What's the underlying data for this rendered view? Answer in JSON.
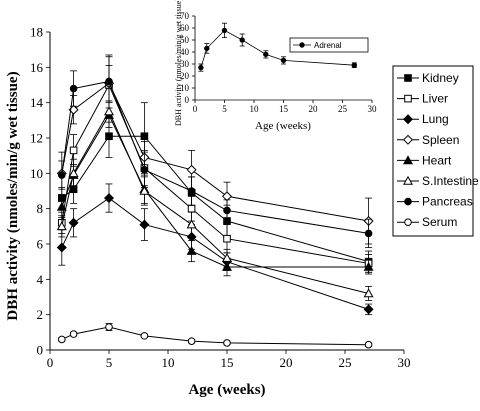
{
  "chart_data": [
    {
      "type": "line",
      "xlabel": "Age (weeks)",
      "ylabel": "DBH activity (nmoles/min/g wet tissue)",
      "xlim": [
        0,
        30
      ],
      "ylim": [
        0,
        18
      ],
      "xticks": [
        0,
        5,
        10,
        15,
        20,
        25,
        30
      ],
      "yticks": [
        0,
        2,
        4,
        6,
        8,
        10,
        12,
        14,
        16,
        18
      ],
      "x": [
        1,
        2,
        5,
        8,
        12,
        15,
        27
      ],
      "grid": false,
      "legend": "right",
      "series": [
        {
          "name": "Kidney",
          "marker": "square-filled",
          "values": [
            8.6,
            9.1,
            12.1,
            12.1,
            8.9,
            7.3,
            5.0
          ],
          "errors": [
            0.6,
            0.8,
            1.2,
            1.9,
            0.9,
            0.9,
            0.6
          ]
        },
        {
          "name": "Liver",
          "marker": "square-open",
          "values": [
            7.2,
            11.3,
            15.0,
            10.3,
            8.0,
            6.3,
            4.9
          ],
          "errors": [
            0.6,
            0.9,
            1.6,
            1.0,
            0.7,
            0.8,
            0.5
          ]
        },
        {
          "name": "Lung",
          "marker": "diamond-filled",
          "values": [
            5.8,
            7.2,
            8.6,
            7.1,
            6.4,
            5.0,
            2.3
          ],
          "errors": [
            1.0,
            0.8,
            0.8,
            0.9,
            0.7,
            0.5,
            0.3
          ]
        },
        {
          "name": "Spleen",
          "marker": "diamond-open",
          "values": [
            10.0,
            13.6,
            15.1,
            10.9,
            10.2,
            8.7,
            7.3
          ],
          "errors": [
            1.2,
            0.8,
            1.0,
            0.9,
            1.1,
            0.8,
            1.3
          ]
        },
        {
          "name": "Heart",
          "marker": "triangle-filled",
          "values": [
            8.1,
            9.9,
            13.3,
            9.1,
            5.6,
            4.7,
            4.7
          ],
          "errors": [
            0.6,
            0.6,
            0.7,
            0.8,
            0.6,
            0.5,
            0.4
          ]
        },
        {
          "name": "S.Intestine",
          "marker": "triangle-open",
          "values": [
            7.0,
            10.0,
            13.5,
            9.0,
            7.1,
            5.2,
            3.2
          ],
          "errors": [
            0.6,
            0.8,
            0.6,
            0.8,
            0.7,
            0.5,
            0.4
          ]
        },
        {
          "name": "Pancreas",
          "marker": "circle-filled",
          "values": [
            9.9,
            14.8,
            15.2,
            10.2,
            9.0,
            7.9,
            6.6
          ],
          "errors": [
            0.8,
            1.0,
            1.5,
            1.0,
            0.8,
            0.6,
            0.8
          ]
        },
        {
          "name": "Serum",
          "marker": "circle-open",
          "values": [
            0.6,
            0.9,
            1.3,
            0.8,
            0.5,
            0.4,
            0.3
          ],
          "errors": [
            0.1,
            0.1,
            0.2,
            0.1,
            0.1,
            0.1,
            0.1
          ]
        }
      ]
    },
    {
      "type": "line",
      "xlabel": "Age (weeks)",
      "ylabel": "DBH activity (nmoles/min/g wet tissue)",
      "xlim": [
        0,
        30
      ],
      "ylim": [
        0,
        70
      ],
      "xticks": [
        0,
        5,
        10,
        15,
        20,
        25,
        30
      ],
      "yticks": [
        0,
        10,
        20,
        30,
        40,
        50,
        60,
        70
      ],
      "x": [
        1,
        2,
        5,
        8,
        12,
        15,
        27
      ],
      "grid": false,
      "legend": "top-right",
      "series": [
        {
          "name": "Adrenal",
          "marker": "circle-filled",
          "values": [
            27,
            43,
            58,
            50,
            38,
            33,
            29
          ],
          "errors": [
            3,
            4,
            6,
            5,
            3,
            3,
            2
          ]
        }
      ]
    }
  ]
}
